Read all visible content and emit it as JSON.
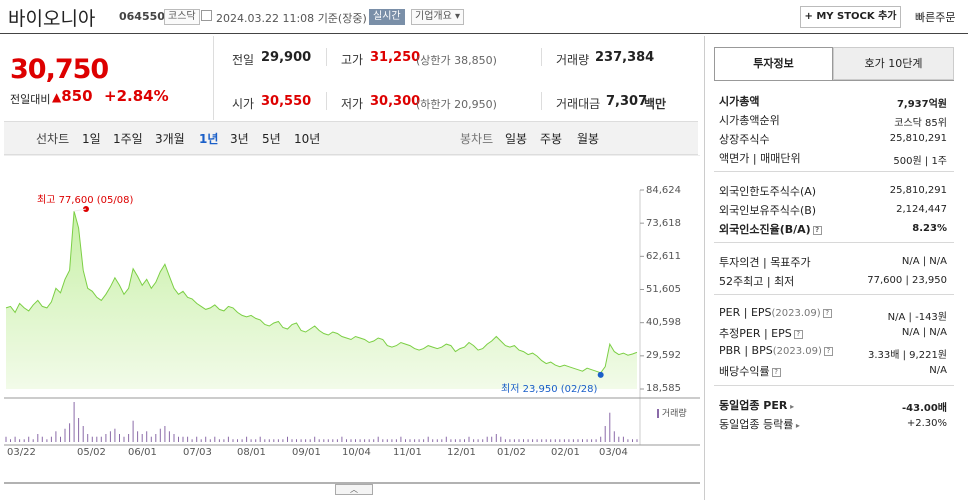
{
  "header": {
    "title": "바이오니아",
    "code": "064550",
    "market": "코스닥",
    "datetime": "2024.03.22 11:08",
    "status_text": "기준(장중)",
    "realtime_label": "실시간",
    "company_overview_label": "기업개요",
    "mystock_label": "+ MY STOCK 추가",
    "quick_order_label": "빠른주문"
  },
  "price": {
    "current": "30,750",
    "diff_label": "전일대비",
    "diff_value": "850",
    "diff_pct": "+2.84%"
  },
  "quote": {
    "prev_close_label": "전일",
    "prev_close": "29,900",
    "high_label": "고가",
    "high": "31,250",
    "upper_limit_text": "(상한가 38,850)",
    "volume_label": "거래량",
    "volume": "237,384",
    "open_label": "시가",
    "open": "30,550",
    "low_label": "저가",
    "low": "30,300",
    "lower_limit_text": "(하한가 20,950)",
    "amount_label": "거래대금",
    "amount": "7,307",
    "amount_unit": "백만"
  },
  "period_bar": {
    "line_chart_label": "선차트",
    "periods": [
      "1일",
      "1주일",
      "3개월",
      "1년",
      "3년",
      "5년",
      "10년"
    ],
    "active_period": "1년",
    "candle_chart_label": "봉차트",
    "candles": [
      "일봉",
      "주봉",
      "월봉"
    ]
  },
  "chart_data": {
    "type": "area",
    "y_ticks": [
      "84,624",
      "73,618",
      "62,611",
      "51,605",
      "40,598",
      "29,592",
      "18,585"
    ],
    "ylim": [
      18585,
      84624
    ],
    "x_ticks": [
      "03/22",
      "05/02",
      "06/01",
      "07/03",
      "08/01",
      "09/01",
      "10/04",
      "11/01",
      "12/01",
      "01/02",
      "02/01",
      "03/04"
    ],
    "high_annotation": "최고 77,600 (05/08)",
    "low_annotation": "최저 23,950 (02/28)",
    "high_value": 77600,
    "low_value": 23950,
    "volume_label": "거래량",
    "prices": [
      45500,
      46000,
      44000,
      47000,
      45500,
      44500,
      46500,
      48000,
      46000,
      45500,
      47500,
      52000,
      50500,
      55000,
      58000,
      77600,
      72000,
      58000,
      52000,
      51000,
      49000,
      48000,
      50000,
      52500,
      55500,
      53000,
      50000,
      52000,
      58500,
      56000,
      53000,
      55000,
      52000,
      54000,
      57500,
      60000,
      56000,
      52000,
      50000,
      51000,
      49000,
      48500,
      47000,
      46000,
      45000,
      45500,
      46500,
      45000,
      44500,
      46000,
      45500,
      44000,
      43000,
      42500,
      43000,
      42000,
      41500,
      40000,
      39500,
      40500,
      41000,
      39000,
      38500,
      40000,
      40500,
      38000,
      37500,
      38500,
      39500,
      38000,
      37000,
      36500,
      37500,
      37000,
      36000,
      35500,
      35000,
      36000,
      35500,
      35000,
      34000,
      34500,
      35500,
      35000,
      33000,
      32500,
      33000,
      34000,
      33500,
      33000,
      32000,
      31500,
      32000,
      33000,
      32500,
      32000,
      32500,
      33500,
      33000,
      31000,
      32000,
      32500,
      34000,
      33000,
      31500,
      32000,
      33500,
      34500,
      36000,
      34500,
      33000,
      32500,
      33000,
      31500,
      31000,
      30000,
      30500,
      29500,
      28000,
      27000,
      27500,
      26500,
      26000,
      26500,
      26000,
      25500,
      25000,
      24500,
      25500,
      25000,
      24500,
      23950,
      26000,
      33500,
      31000,
      30000,
      30500,
      29800,
      30200,
      30750
    ],
    "volumes": [
      2,
      1,
      2,
      1,
      1,
      2,
      1,
      3,
      2,
      1,
      2,
      4,
      2,
      5,
      7,
      15,
      9,
      6,
      3,
      2,
      2,
      2,
      3,
      4,
      5,
      3,
      2,
      3,
      8,
      4,
      3,
      4,
      2,
      3,
      5,
      6,
      4,
      3,
      2,
      2,
      2,
      1,
      2,
      1,
      2,
      1,
      2,
      1,
      1,
      2,
      1,
      1,
      1,
      2,
      1,
      1,
      2,
      1,
      1,
      1,
      1,
      1,
      2,
      1,
      1,
      1,
      1,
      1,
      2,
      1,
      1,
      1,
      1,
      1,
      2,
      1,
      1,
      1,
      1,
      1,
      1,
      1,
      2,
      1,
      1,
      1,
      1,
      2,
      1,
      1,
      1,
      1,
      1,
      2,
      1,
      1,
      1,
      2,
      1,
      1,
      1,
      1,
      2,
      1,
      1,
      1,
      2,
      2,
      3,
      2,
      1,
      1,
      1,
      1,
      1,
      1,
      1,
      1,
      1,
      1,
      1,
      1,
      1,
      1,
      1,
      1,
      1,
      1,
      1,
      1,
      1,
      2,
      6,
      11,
      4,
      2,
      2,
      1,
      1,
      1
    ]
  },
  "right_panel": {
    "tab_active": "투자정보",
    "tab_other": "호가 10단계",
    "market_cap_label": "시가총액",
    "market_cap": "7,937억원",
    "market_cap_rank_label": "시가총액순위",
    "market_cap_rank": "코스닥 85위",
    "shares_label": "상장주식수",
    "shares": "25,810,291",
    "face_value_label": "액면가",
    "trade_unit_label": "매매단위",
    "face_value": "500원",
    "trade_unit": "1주",
    "foreign_limit_label": "외국인한도주식수(A)",
    "foreign_limit": "25,810,291",
    "foreign_hold_label": "외국인보유주식수(B)",
    "foreign_hold": "2,124,447",
    "foreign_ratio_label": "외국인소진율(B/A)",
    "foreign_ratio": "8.23%",
    "opinion_label": "투자의견",
    "target_label": "목표주가",
    "opinion": "N/A",
    "target": "N/A",
    "w52_label": "52주최고",
    "w52_low_label": "최저",
    "w52_high": "77,600",
    "w52_low": "23,950",
    "per_label": "PER",
    "eps_label": "EPS",
    "eps_date": "(2023.09)",
    "per": "N/A",
    "eps": "-143원",
    "est_per_label": "추정PER",
    "est_eps_label": "EPS",
    "est_per": "N/A",
    "est_eps": "N/A",
    "pbr_label": "PBR",
    "bps_label": "BPS",
    "bps_date": "(2023.09)",
    "pbr": "3.33배",
    "bps": "9,221원",
    "dividend_label": "배당수익률",
    "dividend": "N/A",
    "sector_per_label": "동일업종 PER",
    "sector_per": "-43.00배",
    "sector_change_label": "동일업종 등락률",
    "sector_change": "+2.30%"
  },
  "colors": {
    "up": "#dd0000",
    "down": "#1a5fc8",
    "area_fill": "#c7f0a6",
    "area_line": "#7ccf45",
    "volume": "#8a6aa8"
  }
}
